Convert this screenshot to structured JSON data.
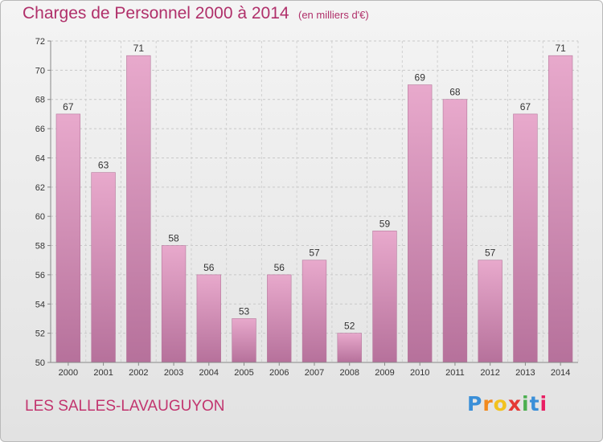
{
  "header": {
    "title": "Charges de Personnel 2000 à 2014",
    "subtitle": "(en milliers d'€)"
  },
  "footer": {
    "location": "LES SALLES-LAVAUGUYON",
    "logo_text": "Proxiti",
    "logo_colors": [
      "#3a8fd8",
      "#f28a1e",
      "#f2c21e",
      "#e53935",
      "#4caf50",
      "#3a8fd8",
      "#e91e63"
    ]
  },
  "chart_data": {
    "type": "bar",
    "categories": [
      "2000",
      "2001",
      "2002",
      "2003",
      "2004",
      "2005",
      "2006",
      "2007",
      "2008",
      "2009",
      "2010",
      "2011",
      "2012",
      "2013",
      "2014"
    ],
    "values": [
      67,
      63,
      71,
      58,
      56,
      53,
      56,
      57,
      52,
      59,
      69,
      68,
      57,
      67,
      71
    ],
    "title": "Charges de Personnel 2000 à 2014",
    "subtitle": "(en milliers d'€)",
    "xlabel": "",
    "ylabel": "",
    "ylim": [
      50,
      72
    ],
    "yticks": [
      50,
      52,
      54,
      56,
      58,
      60,
      62,
      64,
      66,
      68,
      70,
      72
    ],
    "grid": true,
    "bar_color": "#d48cb4"
  }
}
